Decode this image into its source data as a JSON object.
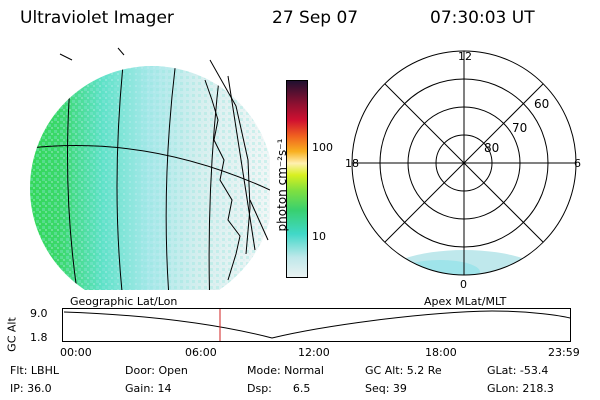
{
  "header": {
    "title": "Ultraviolet Imager",
    "date": "27 Sep 07",
    "time": "07:30:03 UT"
  },
  "colorbar": {
    "unit_label": "photon cm⁻²s⁻¹",
    "ticks": [
      "100",
      "10"
    ]
  },
  "polar": {
    "mlt_labels": {
      "top": "12",
      "left": "18",
      "right": "6",
      "bottom": "0"
    },
    "lat_labels": [
      "60",
      "70",
      "80"
    ]
  },
  "timeline": {
    "left_label": "Geographic Lat/Lon",
    "right_label": "Apex MLat/MLT",
    "axis_title": "GC Alt",
    "y_ticks": [
      "9.0",
      "1.8"
    ],
    "x_ticks": [
      "00:00",
      "06:00",
      "12:00",
      "18:00",
      "23:59"
    ],
    "marker_time": "07:30:03",
    "colors": {
      "marker": "#d02020",
      "curve": "#000000"
    }
  },
  "info": {
    "rows": [
      [
        "Flt: LBHL",
        "Door: Open",
        "Mode: Normal",
        "GC Alt: 5.2 Re",
        "GLat: -53.4"
      ],
      [
        "IP: 36.0",
        "Gain: 14",
        "Dsp:      6.5",
        "Seq: 39",
        "GLon: 218.3"
      ]
    ]
  },
  "colors": {
    "aurora_light": "#bfe6ea",
    "aurora_mid": "#40d8c8",
    "aurora_strong": "#38d040"
  }
}
